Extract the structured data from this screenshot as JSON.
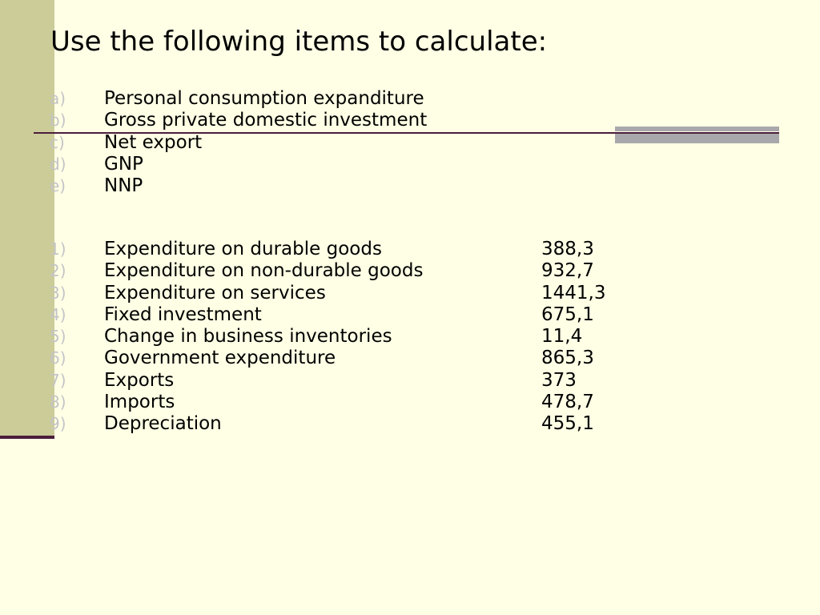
{
  "title": "Use the following items to calculate:",
  "tasks": [
    {
      "marker": "a)",
      "label": "Personal consumption expanditure"
    },
    {
      "marker": "b)",
      "label": "Gross private domestic investment"
    },
    {
      "marker": "c)",
      "label": "Net export"
    },
    {
      "marker": "d)",
      "label": "GNP"
    },
    {
      "marker": "e)",
      "label": "NNP"
    }
  ],
  "items": [
    {
      "marker": "1)",
      "label": "Expenditure on durable goods",
      "value": "388,3"
    },
    {
      "marker": "2)",
      "label": "Expenditure on non-durable goods",
      "value": "932,7"
    },
    {
      "marker": "3)",
      "label": "Expenditure on services",
      "value": "1441,3"
    },
    {
      "marker": "4)",
      "label": "Fixed investment",
      "value": "675,1"
    },
    {
      "marker": "5)",
      "label": "Change in business inventories",
      "value": "11,4"
    },
    {
      "marker": "6)",
      "label": "Government expenditure",
      "value": "865,3"
    },
    {
      "marker": "7)",
      "label": "Exports",
      "value": "373"
    },
    {
      "marker": "8)",
      "label": "Imports",
      "value": "478,7"
    },
    {
      "marker": "9)",
      "label": "Depreciation",
      "value": "455,1"
    }
  ],
  "colors": {
    "background": "#FFFFE5",
    "left_bar": "#CCCC99",
    "accent_line": "#4B1E3C",
    "gray_block": "#A8A8AC",
    "marker_text": "#C4C4C8"
  }
}
